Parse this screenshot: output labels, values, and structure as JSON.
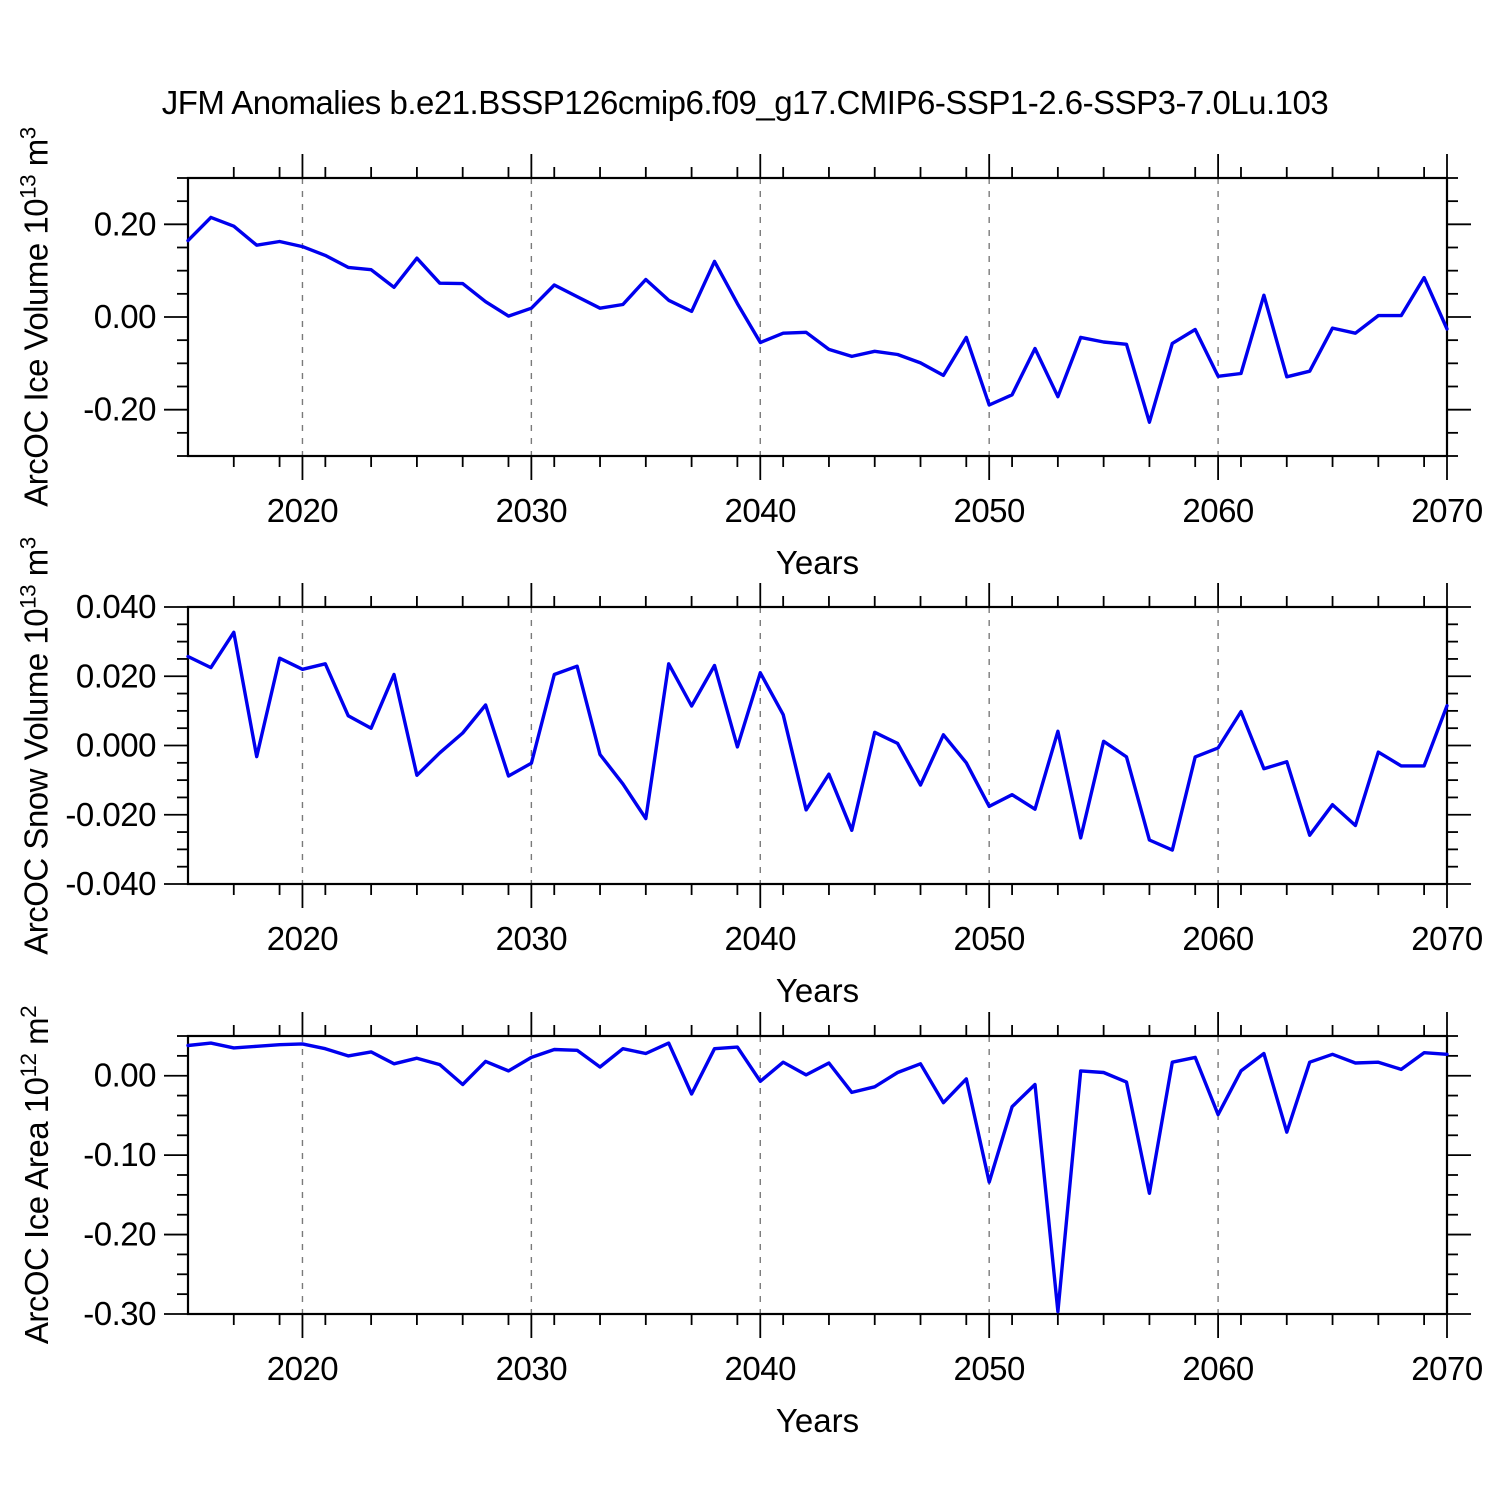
{
  "page": {
    "title": "JFM Anomalies b.e21.BSSP126cmip6.f09_g17.CMIP6-SSP1-2.6-SSP3-7.0Lu.103"
  },
  "style": {
    "line_color": "#0000EE",
    "axis_color": "#000000",
    "grid_color": "#7a7a7a",
    "background": "#ffffff"
  },
  "chart_data": [
    {
      "type": "line",
      "id": "ice-volume",
      "ylabel": "ArcOC Ice Volume 10^13 m^3",
      "ylabel_parts": [
        {
          "text": "ArcOC Ice Volume 10"
        },
        {
          "sup": "13"
        },
        {
          "text": " m"
        },
        {
          "sup": "3"
        }
      ],
      "xlabel": "Years",
      "xlim": [
        2015,
        2070
      ],
      "ylim": [
        -0.3,
        0.3
      ],
      "xticks": [
        2020,
        2030,
        2040,
        2050,
        2060,
        2070
      ],
      "xminor_step": 2,
      "grid_x": [
        2020,
        2030,
        2040,
        2050,
        2060
      ],
      "yticks": [
        {
          "v": 0.2,
          "label": "0.20"
        },
        {
          "v": 0.0,
          "label": "0.00"
        },
        {
          "v": -0.2,
          "label": "-0.20"
        }
      ],
      "yminor_step": 0.05,
      "x": [
        2015,
        2016,
        2017,
        2018,
        2019,
        2020,
        2021,
        2022,
        2023,
        2024,
        2025,
        2026,
        2027,
        2028,
        2029,
        2030,
        2031,
        2032,
        2033,
        2034,
        2035,
        2036,
        2037,
        2038,
        2039,
        2040,
        2041,
        2042,
        2043,
        2044,
        2045,
        2046,
        2047,
        2048,
        2049,
        2050,
        2051,
        2052,
        2053,
        2054,
        2055,
        2056,
        2057,
        2058,
        2059,
        2060,
        2061,
        2062,
        2063,
        2064,
        2065,
        2066,
        2067,
        2068,
        2069,
        2070
      ],
      "values": [
        0.165,
        0.215,
        0.196,
        0.155,
        0.163,
        0.152,
        0.133,
        0.107,
        0.102,
        0.064,
        0.127,
        0.073,
        0.072,
        0.033,
        0.002,
        0.019,
        0.069,
        0.044,
        0.019,
        0.027,
        0.081,
        0.036,
        0.012,
        0.12,
        0.029,
        -0.055,
        -0.035,
        -0.033,
        -0.07,
        -0.085,
        -0.074,
        -0.081,
        -0.099,
        -0.126,
        -0.044,
        -0.19,
        -0.168,
        -0.068,
        -0.172,
        -0.044,
        -0.054,
        -0.059,
        -0.227,
        -0.057,
        -0.027,
        -0.128,
        -0.122,
        0.047,
        -0.129,
        -0.117,
        -0.024,
        -0.035,
        0.003,
        0.003,
        0.085,
        -0.026
      ]
    },
    {
      "type": "line",
      "id": "snow-volume",
      "ylabel": "ArcOC Snow Volume 10^13 m^3",
      "ylabel_parts": [
        {
          "text": "ArcOC Snow Volume 10"
        },
        {
          "sup": "13"
        },
        {
          "text": " m"
        },
        {
          "sup": "3"
        }
      ],
      "xlabel": "Years",
      "xlim": [
        2015,
        2070
      ],
      "ylim": [
        -0.04,
        0.04
      ],
      "xticks": [
        2020,
        2030,
        2040,
        2050,
        2060,
        2070
      ],
      "xminor_step": 2,
      "grid_x": [
        2020,
        2030,
        2040,
        2050,
        2060
      ],
      "yticks": [
        {
          "v": 0.04,
          "label": "0.040"
        },
        {
          "v": 0.02,
          "label": "0.020"
        },
        {
          "v": 0.0,
          "label": "0.000"
        },
        {
          "v": -0.02,
          "label": "-0.020"
        },
        {
          "v": -0.04,
          "label": "-0.040"
        }
      ],
      "yminor_step": 0.005,
      "x": [
        2015,
        2016,
        2017,
        2018,
        2019,
        2020,
        2021,
        2022,
        2023,
        2024,
        2025,
        2026,
        2027,
        2028,
        2029,
        2030,
        2031,
        2032,
        2033,
        2034,
        2035,
        2036,
        2037,
        2038,
        2039,
        2040,
        2041,
        2042,
        2043,
        2044,
        2045,
        2046,
        2047,
        2048,
        2049,
        2050,
        2051,
        2052,
        2053,
        2054,
        2055,
        2056,
        2057,
        2058,
        2059,
        2060,
        2061,
        2062,
        2063,
        2064,
        2065,
        2066,
        2067,
        2068,
        2069,
        2070
      ],
      "values": [
        0.0257,
        0.0225,
        0.0327,
        -0.0032,
        0.0252,
        0.022,
        0.0236,
        0.0086,
        0.005,
        0.0205,
        -0.0086,
        -0.0021,
        0.0036,
        0.0117,
        -0.0088,
        -0.0051,
        0.0205,
        0.0229,
        -0.0026,
        -0.0111,
        -0.0211,
        0.0236,
        0.0114,
        0.0231,
        -0.0004,
        0.021,
        0.0089,
        -0.0186,
        -0.0083,
        -0.0245,
        0.0038,
        0.0006,
        -0.0114,
        0.0031,
        -0.005,
        -0.0176,
        -0.0142,
        -0.0184,
        0.0041,
        -0.0267,
        0.0012,
        -0.0033,
        -0.0273,
        -0.0302,
        -0.0033,
        -0.0007,
        0.0098,
        -0.0067,
        -0.0047,
        -0.0259,
        -0.0171,
        -0.0231,
        -0.0019,
        -0.0059,
        -0.0059,
        0.0115
      ]
    },
    {
      "type": "line",
      "id": "ice-area",
      "ylabel": "ArcOC Ice Area 10^12 m^2",
      "ylabel_parts": [
        {
          "text": "ArcOC Ice Area 10"
        },
        {
          "sup": "12"
        },
        {
          "text": " m"
        },
        {
          "sup": "2"
        }
      ],
      "xlabel": "Years",
      "xlim": [
        2015,
        2070
      ],
      "ylim": [
        -0.3,
        0.05
      ],
      "xticks": [
        2020,
        2030,
        2040,
        2050,
        2060,
        2070
      ],
      "xminor_step": 2,
      "grid_x": [
        2020,
        2030,
        2040,
        2050,
        2060
      ],
      "yticks": [
        {
          "v": 0.0,
          "label": "0.00"
        },
        {
          "v": -0.1,
          "label": "-0.10"
        },
        {
          "v": -0.2,
          "label": "-0.20"
        },
        {
          "v": -0.3,
          "label": "-0.30"
        }
      ],
      "yminor_step": 0.025,
      "x": [
        2015,
        2016,
        2017,
        2018,
        2019,
        2020,
        2021,
        2022,
        2023,
        2024,
        2025,
        2026,
        2027,
        2028,
        2029,
        2030,
        2031,
        2032,
        2033,
        2034,
        2035,
        2036,
        2037,
        2038,
        2039,
        2040,
        2041,
        2042,
        2043,
        2044,
        2045,
        2046,
        2047,
        2048,
        2049,
        2050,
        2051,
        2052,
        2053,
        2054,
        2055,
        2056,
        2057,
        2058,
        2059,
        2060,
        2061,
        2062,
        2063,
        2064,
        2065,
        2066,
        2067,
        2068,
        2069,
        2070
      ],
      "values": [
        0.038,
        0.041,
        0.035,
        0.037,
        0.039,
        0.04,
        0.034,
        0.025,
        0.03,
        0.015,
        0.022,
        0.014,
        -0.011,
        0.018,
        0.006,
        0.023,
        0.033,
        0.032,
        0.011,
        0.034,
        0.028,
        0.041,
        -0.023,
        0.034,
        0.036,
        -0.007,
        0.017,
        0.001,
        0.016,
        -0.021,
        -0.014,
        0.004,
        0.015,
        -0.034,
        -0.004,
        -0.134,
        -0.039,
        -0.011,
        -0.297,
        0.006,
        0.004,
        -0.008,
        -0.148,
        0.017,
        0.023,
        -0.049,
        0.006,
        0.028,
        -0.071,
        0.017,
        0.027,
        0.016,
        0.017,
        0.008,
        0.029,
        0.027
      ]
    }
  ]
}
